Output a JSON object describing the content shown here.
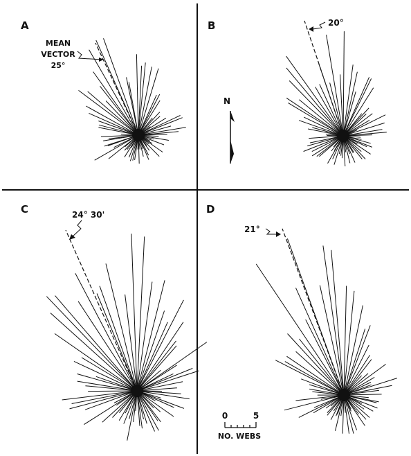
{
  "panels": [
    {
      "id": "A",
      "letter": "A",
      "annotation_lines": [
        "MEAN",
        "VECTOR",
        "25°"
      ],
      "mean_vector_deg": 25
    },
    {
      "id": "B",
      "letter": "B",
      "annotation_lines": [
        "20°"
      ],
      "mean_vector_deg": 20
    },
    {
      "id": "C",
      "letter": "C",
      "annotation_lines": [
        "24° 30'"
      ],
      "mean_vector_deg": 24.5
    },
    {
      "id": "D",
      "letter": "D",
      "annotation_lines": [
        "21°"
      ],
      "mean_vector_deg": 21
    }
  ],
  "north_arrow": {
    "label": "N"
  },
  "scale_bar": {
    "min": "0",
    "max": "5",
    "unit": "NO. WEBS"
  },
  "colors": {
    "ink": "#111111",
    "background": "#ffffff"
  }
}
